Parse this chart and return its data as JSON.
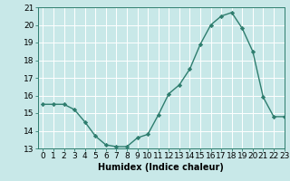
{
  "x": [
    0,
    1,
    2,
    3,
    4,
    5,
    6,
    7,
    8,
    9,
    10,
    11,
    12,
    13,
    14,
    15,
    16,
    17,
    18,
    19,
    20,
    21,
    22,
    23
  ],
  "y": [
    15.5,
    15.5,
    15.5,
    15.2,
    14.5,
    13.7,
    13.2,
    13.1,
    13.1,
    13.6,
    13.8,
    14.9,
    16.1,
    16.6,
    17.5,
    18.9,
    20.0,
    20.5,
    20.7,
    19.8,
    18.5,
    15.9,
    14.8,
    14.8
  ],
  "line_color": "#2e7d6e",
  "marker": "D",
  "marker_size": 2.2,
  "bg_color": "#c8e8e8",
  "grid_color": "#ffffff",
  "xlabel": "Humidex (Indice chaleur)",
  "ylim": [
    13,
    21
  ],
  "xlim": [
    -0.5,
    23
  ],
  "yticks": [
    13,
    14,
    15,
    16,
    17,
    18,
    19,
    20,
    21
  ],
  "xticks": [
    0,
    1,
    2,
    3,
    4,
    5,
    6,
    7,
    8,
    9,
    10,
    11,
    12,
    13,
    14,
    15,
    16,
    17,
    18,
    19,
    20,
    21,
    22,
    23
  ],
  "xlabel_fontsize": 7,
  "tick_fontsize": 6.5
}
